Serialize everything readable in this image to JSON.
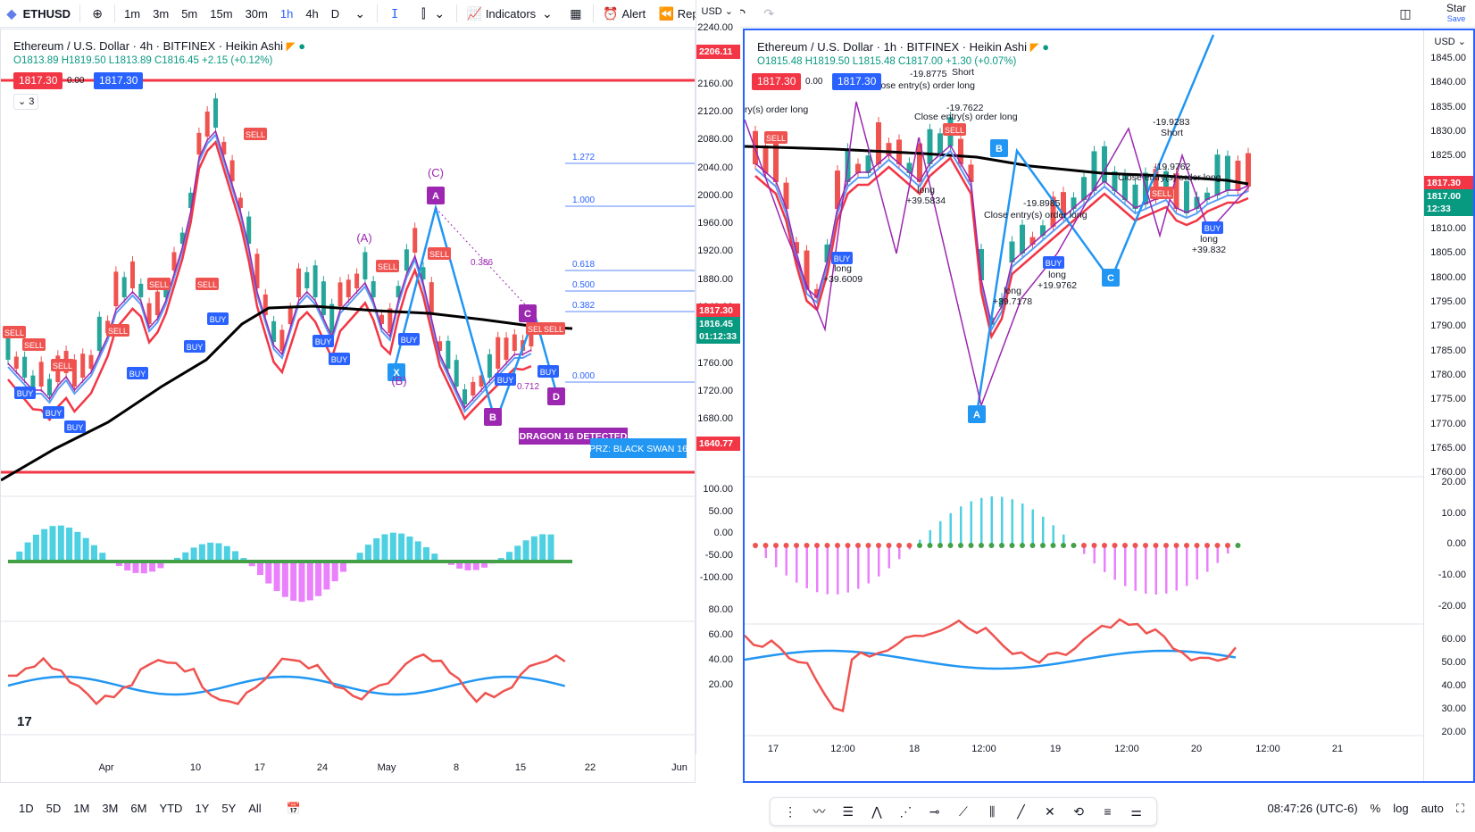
{
  "toolbar": {
    "symbol": "ETHUSD",
    "intervals": [
      "1m",
      "3m",
      "5m",
      "15m",
      "30m",
      "1h",
      "4h",
      "D"
    ],
    "active_interval": "1h",
    "indicators": "Indicators",
    "alert": "Alert",
    "replay": "Replay",
    "star": "Star",
    "save": "Save"
  },
  "left": {
    "title": "Ethereum / U.S. Dollar · 4h · BITFINEX · Heikin Ashi",
    "ohlc": {
      "o": "O1813.89",
      "h": "H1819.50",
      "l": "L1813.89",
      "c": "C1816.45",
      "chg": "+2.15 (+0.12%)"
    },
    "tags": {
      "bid": "1817.30",
      "spread": "0.00",
      "ask": "1817.30"
    },
    "layers": "3",
    "currency": "USD",
    "price_ticks": [
      "2240.00",
      "2200.00",
      "2160.00",
      "2120.00",
      "2080.00",
      "2040.00",
      "2000.00",
      "1960.00",
      "1920.00",
      "1880.00",
      "1840.00",
      "1800.00",
      "1760.00",
      "1720.00",
      "1680.00",
      "1640.00"
    ],
    "red_line_top": "2206.11",
    "red_line_bottom": "1640.77",
    "last_price": "1817.30",
    "last_price2": "1816.45",
    "countdown": "01:12:33",
    "macd_ticks": [
      "100.00",
      "50.00",
      "0.00",
      "-50.00",
      "-100.00"
    ],
    "rsi_ticks": [
      "80.00",
      "60.00",
      "40.00",
      "20.00"
    ],
    "x_ticks": [
      "Apr",
      "10",
      "17",
      "24",
      "May",
      "8",
      "15",
      "22",
      "Jun"
    ],
    "fib": [
      "1.272",
      "1.000",
      "0.618",
      "0.500",
      "0.382",
      "0.000"
    ],
    "labels": {
      "wave_c": "(C)",
      "wave_a": "(A)",
      "wave_b": "(B)",
      "a": "A",
      "b": "B",
      "c": "C",
      "d": "D",
      "x": "X",
      "r386": "0.386",
      "r712": "0.712",
      "dragon": "DRAGON 16 DETECTED",
      "prz": "PRZ: BLACK SWAN 16"
    }
  },
  "right": {
    "title": "Ethereum / U.S. Dollar · 1h · BITFINEX · Heikin Ashi",
    "ohlc": {
      "o": "O1815.48",
      "h": "H1819.50",
      "l": "L1815.48",
      "c": "C1817.00",
      "chg": "+1.30 (+0.07%)"
    },
    "tags": {
      "bid": "1817.30",
      "spread": "0.00",
      "ask": "1817.30"
    },
    "currency": "USD",
    "price_ticks": [
      "1845.00",
      "1840.00",
      "1835.00",
      "1830.00",
      "1825.00",
      "1820.00",
      "1815.00",
      "1810.00",
      "1805.00",
      "1800.00",
      "1795.00",
      "1790.00",
      "1785.00",
      "1780.00",
      "1775.00",
      "1770.00",
      "1765.00",
      "1760.00"
    ],
    "last_price": "1817.30",
    "last_price2": "1817.00",
    "countdown": "12:33",
    "macd_ticks": [
      "20.00",
      "10.00",
      "0.00",
      "-10.00",
      "-20.00"
    ],
    "rsi_ticks": [
      "60.00",
      "50.00",
      "40.00",
      "30.00",
      "20.00"
    ],
    "x_ticks": [
      "17",
      "12:00",
      "18",
      "12:00",
      "19",
      "12:00",
      "20",
      "12:00",
      "21"
    ],
    "annotations": {
      "n1": "-19.8775",
      "n2": "-19.7622",
      "short1": "Short",
      "close1": "lose entry(s) order long",
      "close2": "Close entry(s) order long",
      "close3": "Close entry(s) order long",
      "close4": "Close entry(s) order long",
      "n3": "-19.9283",
      "short2": "Short",
      "n4": "-19.9762",
      "n5": "-19.8985",
      "long1": "long",
      "v1": "+39.6009",
      "long2": "long",
      "v2": "+39.5834",
      "long3": "long",
      "v3": "+39.7178",
      "long4": "long",
      "v4": "+19.9762",
      "long5": "long",
      "v5": "+39.832",
      "close_left": "ry(s) order long"
    },
    "pts": {
      "a": "A",
      "b": "B",
      "c": "C"
    }
  },
  "bottom": {
    "ranges": [
      "1D",
      "5D",
      "1M",
      "3M",
      "6M",
      "YTD",
      "1Y",
      "5Y",
      "All"
    ],
    "time": "08:47:26 (UTC-6)",
    "pct": "%",
    "log": "log",
    "auto": "auto"
  },
  "colors": {
    "up": "#26a69a",
    "down": "#ef5350",
    "blue": "#2962ff",
    "red": "#f23645",
    "purple": "#9c27b0",
    "tv_blue": "#2196f3"
  }
}
